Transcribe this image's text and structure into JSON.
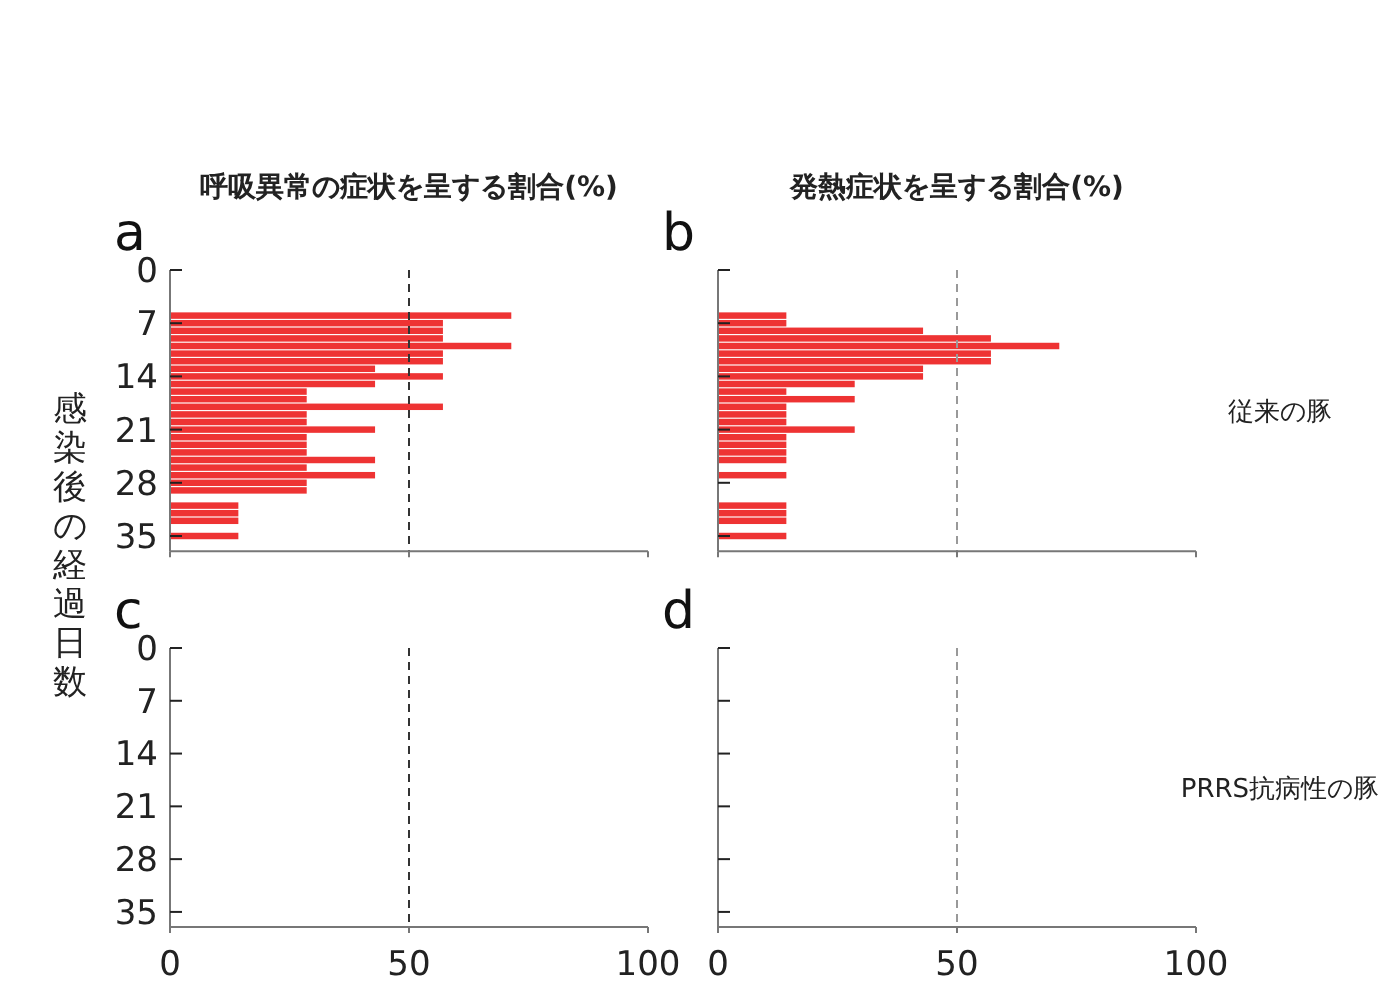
{
  "chart_data": [
    {
      "type": "bar",
      "orientation": "horizontal",
      "title": "呼吸異常の症状を呈する割合(%)",
      "ylabel": "感染後の経過日数",
      "annotations": [
        "a"
      ],
      "x": [
        6,
        7,
        8,
        9,
        10,
        11,
        12,
        13,
        14,
        15,
        16,
        17,
        18,
        19,
        20,
        21,
        22,
        23,
        24,
        25,
        26,
        27,
        28,
        29,
        30,
        31,
        32,
        33,
        34,
        35
      ],
      "series": [
        {
          "color": "#ee3333",
          "values": [
            71.4,
            57.1,
            57.1,
            57.1,
            71.4,
            57.1,
            57.1,
            42.9,
            57.1,
            42.9,
            28.6,
            28.6,
            57.1,
            28.6,
            28.6,
            42.9,
            28.6,
            28.6,
            28.6,
            42.9,
            28.6,
            42.9,
            28.6,
            28.6,
            0,
            14.3,
            14.3,
            14.3,
            0,
            14.3
          ]
        }
      ],
      "xlim": [
        0,
        100
      ],
      "xticks": [
        0,
        50,
        100
      ],
      "ylim": [
        37,
        0
      ],
      "yticks": [
        0,
        7,
        14,
        21,
        28,
        35
      ],
      "tick_labels": "y",
      "ref_lines": [
        {
          "axis": "x",
          "value": 50,
          "color": "#333333",
          "line_style": "dashed"
        }
      ]
    },
    {
      "type": "bar",
      "orientation": "horizontal",
      "title": "発熱症状を呈する割合(%)",
      "annotations": [
        "b",
        "従来の豚"
      ],
      "x": [
        6,
        7,
        8,
        9,
        10,
        11,
        12,
        13,
        14,
        15,
        16,
        17,
        18,
        19,
        20,
        21,
        22,
        23,
        24,
        25,
        26,
        27,
        28,
        29,
        30,
        31,
        32,
        33,
        34,
        35
      ],
      "series": [
        {
          "color": "#ee3333",
          "values": [
            14.3,
            14.3,
            42.9,
            57.1,
            71.4,
            57.1,
            57.1,
            42.9,
            42.9,
            28.6,
            14.3,
            28.6,
            14.3,
            14.3,
            14.3,
            28.6,
            14.3,
            14.3,
            14.3,
            14.3,
            0,
            14.3,
            0,
            0,
            0,
            14.3,
            14.3,
            14.3,
            0,
            14.3
          ]
        }
      ],
      "xlim": [
        0,
        100
      ],
      "xticks": [
        0,
        50,
        100
      ],
      "ylim": [
        37,
        0
      ],
      "yticks": [
        0,
        7,
        14,
        21,
        28,
        35
      ],
      "tick_labels": false,
      "ref_lines": [
        {
          "axis": "x",
          "value": 50,
          "color": "#999999",
          "line_style": "dashed"
        }
      ]
    },
    {
      "type": "bar",
      "orientation": "horizontal",
      "annotations": [
        "c"
      ],
      "x": [
        6,
        7,
        8,
        9,
        10,
        11,
        12,
        13,
        14,
        15,
        16,
        17,
        18,
        19,
        20,
        21,
        22,
        23,
        24,
        25,
        26,
        27,
        28,
        29,
        30,
        31,
        32,
        33,
        34,
        35
      ],
      "series": [
        {
          "color": "#ee3333",
          "values": [
            0,
            0,
            0,
            0,
            0,
            0,
            0,
            0,
            0,
            0,
            0,
            0,
            0,
            0,
            0,
            0,
            0,
            0,
            0,
            0,
            0,
            0,
            0,
            0,
            0,
            0,
            0,
            0,
            0,
            0
          ]
        }
      ],
      "xlim": [
        0,
        100
      ],
      "xticks": [
        0,
        50,
        100
      ],
      "ylim": [
        37,
        0
      ],
      "yticks": [
        0,
        7,
        14,
        21,
        28,
        35
      ],
      "ref_lines": [
        {
          "axis": "x",
          "value": 50,
          "color": "#333333",
          "line_style": "dashed"
        }
      ]
    },
    {
      "type": "bar",
      "orientation": "horizontal",
      "annotations": [
        "d",
        "PRRS抗病性の豚"
      ],
      "x": [
        6,
        7,
        8,
        9,
        10,
        11,
        12,
        13,
        14,
        15,
        16,
        17,
        18,
        19,
        20,
        21,
        22,
        23,
        24,
        25,
        26,
        27,
        28,
        29,
        30,
        31,
        32,
        33,
        34,
        35
      ],
      "series": [
        {
          "color": "#ee3333",
          "values": [
            0,
            0,
            0,
            0,
            0,
            0,
            0,
            0,
            0,
            0,
            0,
            0,
            0,
            0,
            0,
            0,
            0,
            0,
            0,
            0,
            0,
            0,
            0,
            0,
            0,
            0,
            0,
            0,
            0,
            0
          ]
        }
      ],
      "xlim": [
        0,
        100
      ],
      "xticks": [
        0,
        50,
        100
      ],
      "ylim": [
        37,
        0
      ],
      "yticks": [
        0,
        7,
        14,
        21,
        28,
        35
      ],
      "tick_labels": "x",
      "ref_lines": [
        {
          "axis": "x",
          "value": 50,
          "color": "#999999",
          "line_style": "dashed"
        }
      ]
    }
  ]
}
